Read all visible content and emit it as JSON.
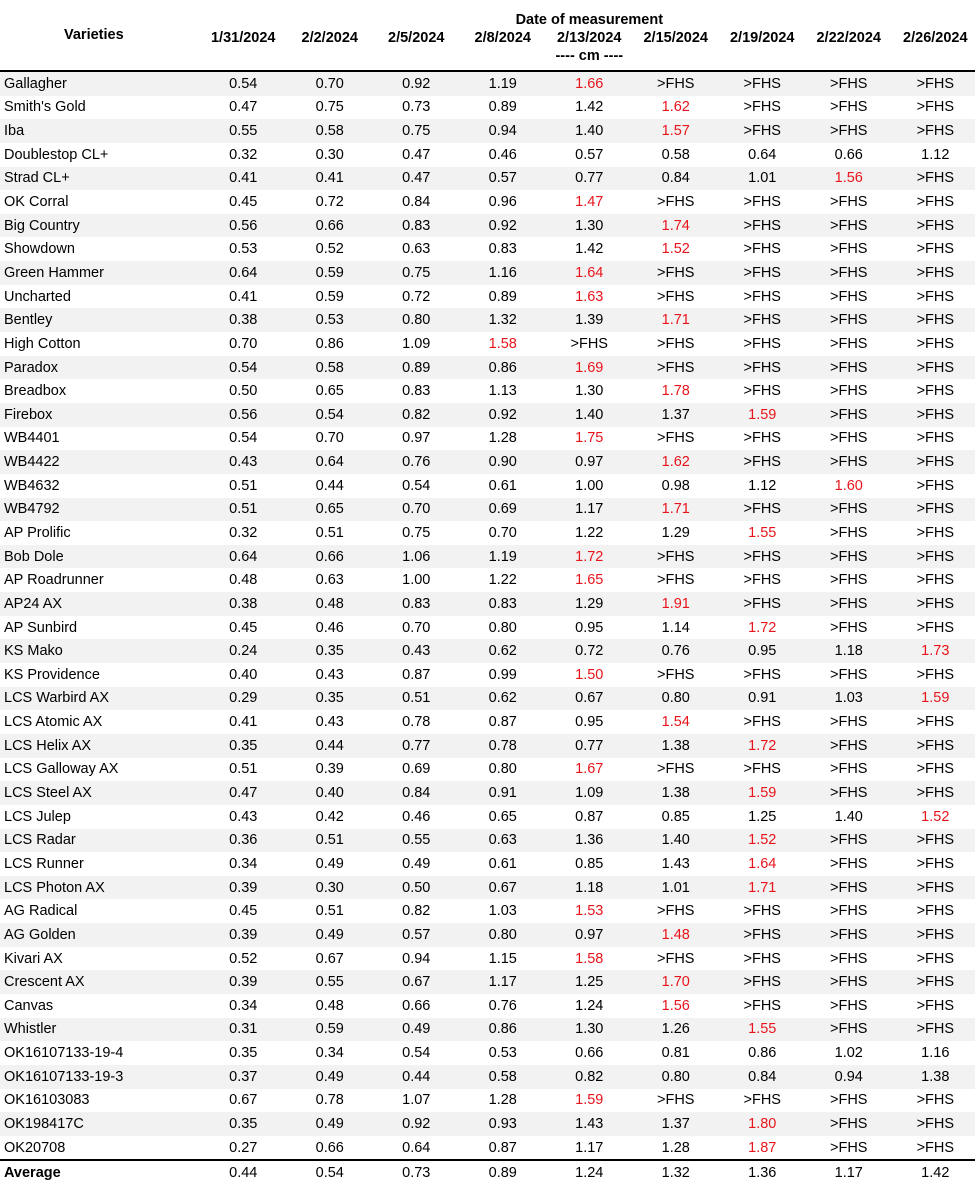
{
  "header": {
    "varieties_label": "Varieties",
    "group_label": "Date of measurement",
    "unit_label": "---- cm ----",
    "dates": [
      "1/31/2024",
      "2/2/2024",
      "2/5/2024",
      "2/8/2024",
      "2/13/2024",
      "2/15/2024",
      "2/19/2024",
      "2/22/2024",
      "2/26/2024"
    ]
  },
  "highlight_color": "#e8141b",
  "rows": [
    {
      "name": "Gallagher",
      "values": [
        "0.54",
        "0.70",
        "0.92",
        "1.19",
        "1.66",
        ">FHS",
        ">FHS",
        ">FHS",
        ">FHS"
      ],
      "red": 4
    },
    {
      "name": "Smith's Gold",
      "values": [
        "0.47",
        "0.75",
        "0.73",
        "0.89",
        "1.42",
        "1.62",
        ">FHS",
        ">FHS",
        ">FHS"
      ],
      "red": 5
    },
    {
      "name": "Iba",
      "values": [
        "0.55",
        "0.58",
        "0.75",
        "0.94",
        "1.40",
        "1.57",
        ">FHS",
        ">FHS",
        ">FHS"
      ],
      "red": 5
    },
    {
      "name": "Doublestop CL+",
      "values": [
        "0.32",
        "0.30",
        "0.47",
        "0.46",
        "0.57",
        "0.58",
        "0.64",
        "0.66",
        "1.12"
      ],
      "red": -1
    },
    {
      "name": "Strad CL+",
      "values": [
        "0.41",
        "0.41",
        "0.47",
        "0.57",
        "0.77",
        "0.84",
        "1.01",
        "1.56",
        ">FHS"
      ],
      "red": 7
    },
    {
      "name": "OK Corral",
      "values": [
        "0.45",
        "0.72",
        "0.84",
        "0.96",
        "1.47",
        ">FHS",
        ">FHS",
        ">FHS",
        ">FHS"
      ],
      "red": 4
    },
    {
      "name": "Big Country",
      "values": [
        "0.56",
        "0.66",
        "0.83",
        "0.92",
        "1.30",
        "1.74",
        ">FHS",
        ">FHS",
        ">FHS"
      ],
      "red": 5
    },
    {
      "name": "Showdown",
      "values": [
        "0.53",
        "0.52",
        "0.63",
        "0.83",
        "1.42",
        "1.52",
        ">FHS",
        ">FHS",
        ">FHS"
      ],
      "red": 5
    },
    {
      "name": "Green Hammer",
      "values": [
        "0.64",
        "0.59",
        "0.75",
        "1.16",
        "1.64",
        ">FHS",
        ">FHS",
        ">FHS",
        ">FHS"
      ],
      "red": 4
    },
    {
      "name": "Uncharted",
      "values": [
        "0.41",
        "0.59",
        "0.72",
        "0.89",
        "1.63",
        ">FHS",
        ">FHS",
        ">FHS",
        ">FHS"
      ],
      "red": 4
    },
    {
      "name": "Bentley",
      "values": [
        "0.38",
        "0.53",
        "0.80",
        "1.32",
        "1.39",
        "1.71",
        ">FHS",
        ">FHS",
        ">FHS"
      ],
      "red": 5
    },
    {
      "name": "High Cotton",
      "values": [
        "0.70",
        "0.86",
        "1.09",
        "1.58",
        ">FHS",
        ">FHS",
        ">FHS",
        ">FHS",
        ">FHS"
      ],
      "red": 3
    },
    {
      "name": "Paradox",
      "values": [
        "0.54",
        "0.58",
        "0.89",
        "0.86",
        "1.69",
        ">FHS",
        ">FHS",
        ">FHS",
        ">FHS"
      ],
      "red": 4
    },
    {
      "name": "Breadbox",
      "values": [
        "0.50",
        "0.65",
        "0.83",
        "1.13",
        "1.30",
        "1.78",
        ">FHS",
        ">FHS",
        ">FHS"
      ],
      "red": 5
    },
    {
      "name": "Firebox",
      "values": [
        "0.56",
        "0.54",
        "0.82",
        "0.92",
        "1.40",
        "1.37",
        "1.59",
        ">FHS",
        ">FHS"
      ],
      "red": 6
    },
    {
      "name": "WB4401",
      "values": [
        "0.54",
        "0.70",
        "0.97",
        "1.28",
        "1.75",
        ">FHS",
        ">FHS",
        ">FHS",
        ">FHS"
      ],
      "red": 4
    },
    {
      "name": "WB4422",
      "values": [
        "0.43",
        "0.64",
        "0.76",
        "0.90",
        "0.97",
        "1.62",
        ">FHS",
        ">FHS",
        ">FHS"
      ],
      "red": 5
    },
    {
      "name": "WB4632",
      "values": [
        "0.51",
        "0.44",
        "0.54",
        "0.61",
        "1.00",
        "0.98",
        "1.12",
        "1.60",
        ">FHS"
      ],
      "red": 7
    },
    {
      "name": "WB4792",
      "values": [
        "0.51",
        "0.65",
        "0.70",
        "0.69",
        "1.17",
        "1.71",
        ">FHS",
        ">FHS",
        ">FHS"
      ],
      "red": 5
    },
    {
      "name": "AP Prolific",
      "values": [
        "0.32",
        "0.51",
        "0.75",
        "0.70",
        "1.22",
        "1.29",
        "1.55",
        ">FHS",
        ">FHS"
      ],
      "red": 6
    },
    {
      "name": "Bob Dole",
      "values": [
        "0.64",
        "0.66",
        "1.06",
        "1.19",
        "1.72",
        ">FHS",
        ">FHS",
        ">FHS",
        ">FHS"
      ],
      "red": 4
    },
    {
      "name": "AP Roadrunner",
      "values": [
        "0.48",
        "0.63",
        "1.00",
        "1.22",
        "1.65",
        ">FHS",
        ">FHS",
        ">FHS",
        ">FHS"
      ],
      "red": 4
    },
    {
      "name": "AP24 AX",
      "values": [
        "0.38",
        "0.48",
        "0.83",
        "0.83",
        "1.29",
        "1.91",
        ">FHS",
        ">FHS",
        ">FHS"
      ],
      "red": 5
    },
    {
      "name": "AP Sunbird",
      "values": [
        "0.45",
        "0.46",
        "0.70",
        "0.80",
        "0.95",
        "1.14",
        "1.72",
        ">FHS",
        ">FHS"
      ],
      "red": 6
    },
    {
      "name": "KS Mako",
      "values": [
        "0.24",
        "0.35",
        "0.43",
        "0.62",
        "0.72",
        "0.76",
        "0.95",
        "1.18",
        "1.73"
      ],
      "red": 8
    },
    {
      "name": "KS Providence",
      "values": [
        "0.40",
        "0.43",
        "0.87",
        "0.99",
        "1.50",
        ">FHS",
        ">FHS",
        ">FHS",
        ">FHS"
      ],
      "red": 4
    },
    {
      "name": "LCS Warbird AX",
      "values": [
        "0.29",
        "0.35",
        "0.51",
        "0.62",
        "0.67",
        "0.80",
        "0.91",
        "1.03",
        "1.59"
      ],
      "red": 8
    },
    {
      "name": "LCS Atomic AX",
      "values": [
        "0.41",
        "0.43",
        "0.78",
        "0.87",
        "0.95",
        "1.54",
        ">FHS",
        ">FHS",
        ">FHS"
      ],
      "red": 5
    },
    {
      "name": "LCS Helix AX",
      "values": [
        "0.35",
        "0.44",
        "0.77",
        "0.78",
        "0.77",
        "1.38",
        "1.72",
        ">FHS",
        ">FHS"
      ],
      "red": 6
    },
    {
      "name": "LCS Galloway AX",
      "values": [
        "0.51",
        "0.39",
        "0.69",
        "0.80",
        "1.67",
        ">FHS",
        ">FHS",
        ">FHS",
        ">FHS"
      ],
      "red": 4
    },
    {
      "name": "LCS Steel AX",
      "values": [
        "0.47",
        "0.40",
        "0.84",
        "0.91",
        "1.09",
        "1.38",
        "1.59",
        ">FHS",
        ">FHS"
      ],
      "red": 6
    },
    {
      "name": "LCS Julep",
      "values": [
        "0.43",
        "0.42",
        "0.46",
        "0.65",
        "0.87",
        "0.85",
        "1.25",
        "1.40",
        "1.52"
      ],
      "red": 8
    },
    {
      "name": "LCS Radar",
      "values": [
        "0.36",
        "0.51",
        "0.55",
        "0.63",
        "1.36",
        "1.40",
        "1.52",
        ">FHS",
        ">FHS"
      ],
      "red": 6
    },
    {
      "name": "LCS Runner",
      "values": [
        "0.34",
        "0.49",
        "0.49",
        "0.61",
        "0.85",
        "1.43",
        "1.64",
        ">FHS",
        ">FHS"
      ],
      "red": 6
    },
    {
      "name": "LCS Photon AX",
      "values": [
        "0.39",
        "0.30",
        "0.50",
        "0.67",
        "1.18",
        "1.01",
        "1.71",
        ">FHS",
        ">FHS"
      ],
      "red": 6
    },
    {
      "name": "AG Radical",
      "values": [
        "0.45",
        "0.51",
        "0.82",
        "1.03",
        "1.53",
        ">FHS",
        ">FHS",
        ">FHS",
        ">FHS"
      ],
      "red": 4
    },
    {
      "name": "AG Golden",
      "values": [
        "0.39",
        "0.49",
        "0.57",
        "0.80",
        "0.97",
        "1.48",
        ">FHS",
        ">FHS",
        ">FHS"
      ],
      "red": 5
    },
    {
      "name": "Kivari AX",
      "values": [
        "0.52",
        "0.67",
        "0.94",
        "1.15",
        "1.58",
        ">FHS",
        ">FHS",
        ">FHS",
        ">FHS"
      ],
      "red": 4
    },
    {
      "name": "Crescent AX",
      "values": [
        "0.39",
        "0.55",
        "0.67",
        "1.17",
        "1.25",
        "1.70",
        ">FHS",
        ">FHS",
        ">FHS"
      ],
      "red": 5
    },
    {
      "name": "Canvas",
      "values": [
        "0.34",
        "0.48",
        "0.66",
        "0.76",
        "1.24",
        "1.56",
        ">FHS",
        ">FHS",
        ">FHS"
      ],
      "red": 5
    },
    {
      "name": "Whistler",
      "values": [
        "0.31",
        "0.59",
        "0.49",
        "0.86",
        "1.30",
        "1.26",
        "1.55",
        ">FHS",
        ">FHS"
      ],
      "red": 6
    },
    {
      "name": "OK16107133-19-4",
      "values": [
        "0.35",
        "0.34",
        "0.54",
        "0.53",
        "0.66",
        "0.81",
        "0.86",
        "1.02",
        "1.16"
      ],
      "red": -1
    },
    {
      "name": "OK16107133-19-3",
      "values": [
        "0.37",
        "0.49",
        "0.44",
        "0.58",
        "0.82",
        "0.80",
        "0.84",
        "0.94",
        "1.38"
      ],
      "red": -1
    },
    {
      "name": "OK16103083",
      "values": [
        "0.67",
        "0.78",
        "1.07",
        "1.28",
        "1.59",
        ">FHS",
        ">FHS",
        ">FHS",
        ">FHS"
      ],
      "red": 4
    },
    {
      "name": "OK198417C",
      "values": [
        "0.35",
        "0.49",
        "0.92",
        "0.93",
        "1.43",
        "1.37",
        "1.80",
        ">FHS",
        ">FHS"
      ],
      "red": 6
    },
    {
      "name": "OK20708",
      "values": [
        "0.27",
        "0.66",
        "0.64",
        "0.87",
        "1.17",
        "1.28",
        "1.87",
        ">FHS",
        ">FHS"
      ],
      "red": 6
    }
  ],
  "average": {
    "label": "Average",
    "values": [
      "0.44",
      "0.54",
      "0.73",
      "0.89",
      "1.24",
      "1.32",
      "1.36",
      "1.17",
      "1.42"
    ]
  }
}
